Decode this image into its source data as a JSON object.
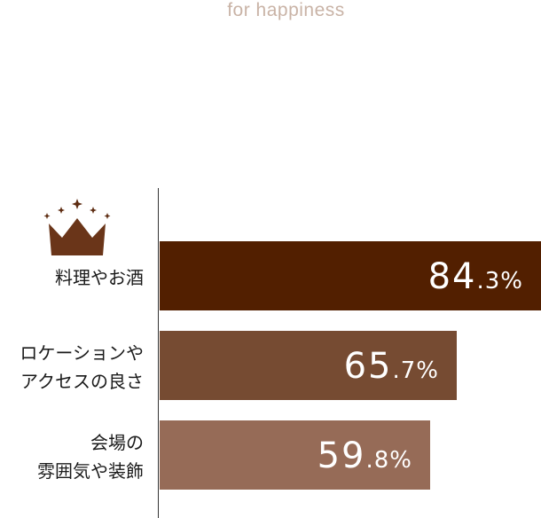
{
  "tagline": "for happiness",
  "chart_data": {
    "type": "bar",
    "orientation": "horizontal",
    "categories": [
      [
        "料理やお酒"
      ],
      [
        "ロケーションや",
        "アクセスの良さ"
      ],
      [
        "会場の",
        "雰囲気や装飾"
      ]
    ],
    "values": [
      84.3,
      65.7,
      59.8
    ],
    "value_labels": [
      {
        "int": "84",
        "dec": ".3%"
      },
      {
        "int": "65",
        "dec": ".7%"
      },
      {
        "int": "59",
        "dec": ".8%"
      }
    ],
    "bar_colors": [
      "#521f00",
      "#764b32",
      "#966b57"
    ],
    "top_badge": "crown-icon",
    "title": "",
    "xlabel": "",
    "ylabel": ""
  }
}
